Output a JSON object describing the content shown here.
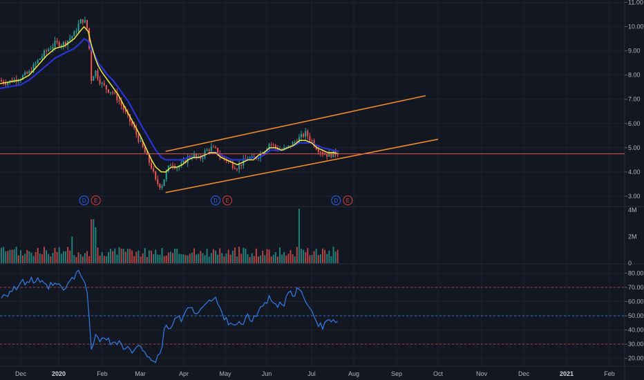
{
  "colors": {
    "background": "#131722",
    "grid": "#1e222d",
    "separator": "#2a2e39",
    "up": "#26a69a",
    "down": "#ef5350",
    "ema_fast": "#f5eb3b",
    "ema_slow": "#2934d6",
    "channel": "#f08c28",
    "rsi": "#2f80ed",
    "price_line": "#e05555",
    "event_dividend": "#2962ff",
    "event_earnings": "#e03b3b"
  },
  "x_axis": {
    "labels": [
      "Dec",
      "2020",
      "Feb",
      "Mar",
      "Apr",
      "May",
      "Jun",
      "Jul",
      "Aug",
      "Sep",
      "Oct",
      "Nov",
      "Dec",
      "2021",
      "Feb"
    ],
    "positions": [
      "2019-12",
      "2020-01",
      "2020-02",
      "2020-03",
      "2020-04",
      "2020-05",
      "2020-06",
      "2020-07",
      "2020-08",
      "2020-09",
      "2020-10",
      "2020-11",
      "2020-12",
      "2021-01",
      "2021-02"
    ],
    "bold": [
      "2020",
      "2021"
    ]
  },
  "events": [
    {
      "date": "2020-01-23",
      "letters": [
        "D",
        "E"
      ]
    },
    {
      "date": "2020-04-28",
      "letters": [
        "D",
        "E"
      ]
    },
    {
      "date": "2020-07-23",
      "letters": [
        "D",
        "E"
      ]
    }
  ],
  "chart_data": [
    {
      "type": "candlestick",
      "panel": "price",
      "y_ticks": [
        "3.00",
        "4.00",
        "5.00",
        "6.00",
        "7.00",
        "8.00",
        "9.00",
        "10.00",
        "11.00"
      ],
      "ylim": [
        2.6,
        11.1
      ],
      "x": [
        "2019-11-17",
        "2019-11-24",
        "2019-12-01",
        "2019-12-08",
        "2019-12-15",
        "2019-12-22",
        "2019-12-29",
        "2020-01-05",
        "2020-01-12",
        "2020-01-16",
        "2020-01-19",
        "2020-01-22",
        "2020-01-24",
        "2020-01-27",
        "2020-01-29",
        "2020-02-01",
        "2020-02-05",
        "2020-02-09",
        "2020-02-13",
        "2020-02-17",
        "2020-02-21",
        "2020-02-25",
        "2020-03-01",
        "2020-03-05",
        "2020-03-09",
        "2020-03-12",
        "2020-03-16",
        "2020-03-19",
        "2020-03-23",
        "2020-03-27",
        "2020-03-31",
        "2020-04-04",
        "2020-04-08",
        "2020-04-12",
        "2020-04-16",
        "2020-04-20",
        "2020-04-24",
        "2020-04-28",
        "2020-05-02",
        "2020-05-06",
        "2020-05-10",
        "2020-05-14",
        "2020-05-18",
        "2020-05-22",
        "2020-05-26",
        "2020-05-30",
        "2020-06-03",
        "2020-06-07",
        "2020-06-11",
        "2020-06-15",
        "2020-06-19",
        "2020-06-23",
        "2020-06-27",
        "2020-07-01",
        "2020-07-05",
        "2020-07-09",
        "2020-07-13",
        "2020-07-17",
        "2020-07-21"
      ],
      "close": [
        7.8,
        7.7,
        7.9,
        8.1,
        8.6,
        9.0,
        9.3,
        9.3,
        9.7,
        10.2,
        10.3,
        9.8,
        7.8,
        8.2,
        7.9,
        7.6,
        7.4,
        7.3,
        7.0,
        6.6,
        6.2,
        5.8,
        5.2,
        4.7,
        4.2,
        3.6,
        3.4,
        3.9,
        4.4,
        4.2,
        4.3,
        4.6,
        4.7,
        4.5,
        4.8,
        5.0,
        4.9,
        4.6,
        4.5,
        4.3,
        4.2,
        4.4,
        4.6,
        4.5,
        4.7,
        4.9,
        5.2,
        5.0,
        4.9,
        5.0,
        5.2,
        5.4,
        5.6,
        5.3,
        5.0,
        4.8,
        4.7,
        4.75,
        4.8
      ],
      "ema_fast": [
        7.6,
        7.7,
        7.8,
        8.0,
        8.4,
        8.8,
        9.1,
        9.2,
        9.5,
        9.8,
        10.0,
        9.8,
        9.3,
        8.7,
        8.4,
        8.1,
        7.8,
        7.5,
        7.2,
        6.8,
        6.4,
        6.0,
        5.5,
        5.0,
        4.5,
        4.2,
        4.0,
        4.0,
        4.2,
        4.2,
        4.3,
        4.5,
        4.6,
        4.6,
        4.7,
        4.8,
        4.8,
        4.6,
        4.5,
        4.4,
        4.3,
        4.4,
        4.5,
        4.5,
        4.7,
        4.8,
        5.0,
        5.0,
        4.9,
        5.0,
        5.1,
        5.3,
        5.3,
        5.2,
        5.0,
        4.9,
        4.8,
        4.8,
        4.75
      ],
      "ema_slow": [
        7.4,
        7.5,
        7.6,
        7.8,
        8.1,
        8.4,
        8.7,
        8.9,
        9.1,
        9.3,
        9.5,
        9.4,
        9.1,
        8.8,
        8.5,
        8.3,
        8.0,
        7.8,
        7.5,
        7.2,
        6.9,
        6.5,
        6.0,
        5.6,
        5.2,
        4.9,
        4.6,
        4.5,
        4.5,
        4.5,
        4.5,
        4.6,
        4.6,
        4.6,
        4.7,
        4.8,
        4.8,
        4.7,
        4.6,
        4.5,
        4.5,
        4.5,
        4.5,
        4.6,
        4.6,
        4.7,
        4.9,
        4.9,
        4.9,
        5.0,
        5.1,
        5.2,
        5.2,
        5.2,
        5.1,
        5.0,
        4.95,
        4.9,
        4.85
      ],
      "channel_upper": {
        "x": [
          "2020-03-19",
          "2020-09-22"
        ],
        "y": [
          4.85,
          7.15
        ]
      },
      "channel_lower": {
        "x": [
          "2020-03-19",
          "2020-10-01"
        ],
        "y": [
          3.15,
          5.35
        ]
      },
      "price_line": 4.75
    },
    {
      "type": "bar",
      "panel": "volume",
      "y_ticks": [
        "0",
        "2M",
        "4M"
      ],
      "ylim": [
        0,
        4.2
      ],
      "note": "volume in millions",
      "spikes": [
        {
          "x": "2020-01-25",
          "value": 3.3
        },
        {
          "x": "2020-01-27",
          "value": 2.7
        },
        {
          "x": "2020-06-23",
          "value": 4.1
        },
        {
          "x": "2020-01-10",
          "value": 2.0
        }
      ],
      "typical": 1.0
    },
    {
      "type": "line",
      "panel": "rsi",
      "y_ticks": [
        "20.00",
        "30.00",
        "40.00",
        "50.00",
        "60.00",
        "70.00",
        "80.00"
      ],
      "ylim": [
        15,
        86
      ],
      "levels": [
        70,
        50,
        30
      ],
      "current": 46,
      "x": [
        "2019-11-17",
        "2019-11-24",
        "2019-12-01",
        "2019-12-08",
        "2019-12-15",
        "2019-12-22",
        "2019-12-29",
        "2020-01-05",
        "2020-01-12",
        "2020-01-16",
        "2020-01-19",
        "2020-01-22",
        "2020-01-24",
        "2020-01-27",
        "2020-01-29",
        "2020-02-01",
        "2020-02-05",
        "2020-02-09",
        "2020-02-13",
        "2020-02-17",
        "2020-02-21",
        "2020-02-25",
        "2020-03-01",
        "2020-03-05",
        "2020-03-09",
        "2020-03-12",
        "2020-03-16",
        "2020-03-19",
        "2020-03-23",
        "2020-03-27",
        "2020-03-31",
        "2020-04-04",
        "2020-04-08",
        "2020-04-12",
        "2020-04-16",
        "2020-04-20",
        "2020-04-24",
        "2020-04-28",
        "2020-05-02",
        "2020-05-06",
        "2020-05-10",
        "2020-05-14",
        "2020-05-18",
        "2020-05-22",
        "2020-05-26",
        "2020-05-30",
        "2020-06-03",
        "2020-06-07",
        "2020-06-11",
        "2020-06-15",
        "2020-06-19",
        "2020-06-23",
        "2020-06-27",
        "2020-07-01",
        "2020-07-05",
        "2020-07-09",
        "2020-07-13",
        "2020-07-17",
        "2020-07-21"
      ],
      "values": [
        62,
        66,
        72,
        75,
        74,
        70,
        72,
        68,
        78,
        80,
        76,
        60,
        28,
        36,
        32,
        34,
        36,
        30,
        32,
        28,
        26,
        24,
        28,
        25,
        20,
        18,
        22,
        46,
        40,
        50,
        48,
        56,
        52,
        55,
        58,
        60,
        62,
        52,
        48,
        44,
        46,
        42,
        50,
        46,
        54,
        58,
        62,
        60,
        56,
        64,
        66,
        68,
        60,
        56,
        46,
        42,
        48,
        46,
        46
      ]
    }
  ]
}
